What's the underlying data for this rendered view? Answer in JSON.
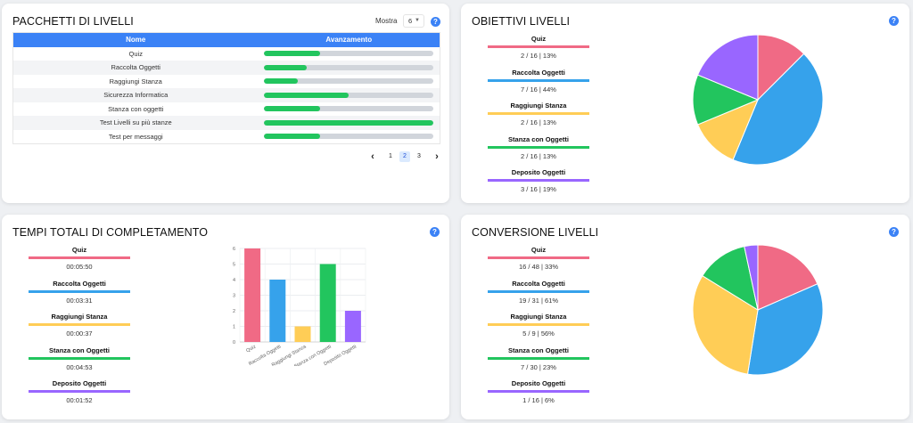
{
  "pacchetti": {
    "title": "PACCHETTI DI LIVELLI",
    "mostra_label": "Mostra",
    "page_size": "6",
    "headers": [
      "Nome",
      "Avanzamento"
    ],
    "rows": [
      {
        "name": "Quiz",
        "progress": 0.33
      },
      {
        "name": "Raccolta Oggetti",
        "progress": 0.25
      },
      {
        "name": "Raggiungi Stanza",
        "progress": 0.2
      },
      {
        "name": "Sicurezza Informatica",
        "progress": 0.5
      },
      {
        "name": "Stanza con oggetti",
        "progress": 0.33
      },
      {
        "name": "Test Livelli su più stanze",
        "progress": 1.0
      },
      {
        "name": "Test per messaggi",
        "progress": 0.33
      }
    ],
    "pages": [
      "1",
      "2",
      "3"
    ],
    "active_page": "2"
  },
  "obiettivi": {
    "title": "OBIETTIVI LIVELLI",
    "items": [
      {
        "name": "Quiz",
        "value": "2 / 16 | 13%",
        "color": "#f06a85"
      },
      {
        "name": "Raccolta Oggetti",
        "value": "7 / 16 | 44%",
        "color": "#36a2eb"
      },
      {
        "name": "Raggiungi Stanza",
        "value": "2 / 16 | 13%",
        "color": "#ffcd56"
      },
      {
        "name": "Stanza con Oggetti",
        "value": "2 / 16 | 13%",
        "color": "#22c55e"
      },
      {
        "name": "Deposito Oggetti",
        "value": "3 / 16 | 19%",
        "color": "#9966ff"
      }
    ],
    "pie": [
      2,
      7,
      2,
      2,
      3
    ]
  },
  "tempi": {
    "title": "TEMPI TOTALI DI COMPLETAMENTO",
    "items": [
      {
        "name": "Quiz",
        "value": "00:05:50",
        "color": "#f06a85"
      },
      {
        "name": "Raccolta Oggetti",
        "value": "00:03:31",
        "color": "#36a2eb"
      },
      {
        "name": "Raggiungi Stanza",
        "value": "00:00:37",
        "color": "#ffcd56"
      },
      {
        "name": "Stanza con Oggetti",
        "value": "00:04:53",
        "color": "#22c55e"
      },
      {
        "name": "Deposito Oggetti",
        "value": "00:01:52",
        "color": "#9966ff"
      }
    ]
  },
  "conversione": {
    "title": "CONVERSIONE LIVELLI",
    "items": [
      {
        "name": "Quiz",
        "value": "16 / 48 | 33%",
        "color": "#f06a85"
      },
      {
        "name": "Raccolta Oggetti",
        "value": "19 / 31 | 61%",
        "color": "#36a2eb"
      },
      {
        "name": "Raggiungi Stanza",
        "value": "5 / 9 | 56%",
        "color": "#ffcd56"
      },
      {
        "name": "Stanza con Oggetti",
        "value": "7 / 30 | 23%",
        "color": "#22c55e"
      },
      {
        "name": "Deposito Oggetti",
        "value": "1 / 16 | 6%",
        "color": "#9966ff"
      }
    ],
    "pie": [
      33,
      61,
      56,
      23,
      6
    ]
  },
  "chart_data": {
    "type": "bar",
    "categories": [
      "Quiz",
      "Raccolta Oggetti",
      "Raggiungi Stanza",
      "Stanza con Oggetti",
      "Deposito Oggetti"
    ],
    "values": [
      6,
      4,
      1,
      5,
      2
    ],
    "colors": [
      "#f06a85",
      "#36a2eb",
      "#ffcd56",
      "#22c55e",
      "#9966ff"
    ],
    "yticks": [
      "0",
      "1",
      "2",
      "3",
      "4",
      "5",
      "6"
    ],
    "ylim": [
      0,
      6
    ],
    "grid": true
  },
  "help_icon": "?",
  "prev_icon": "‹",
  "next_icon": "›"
}
